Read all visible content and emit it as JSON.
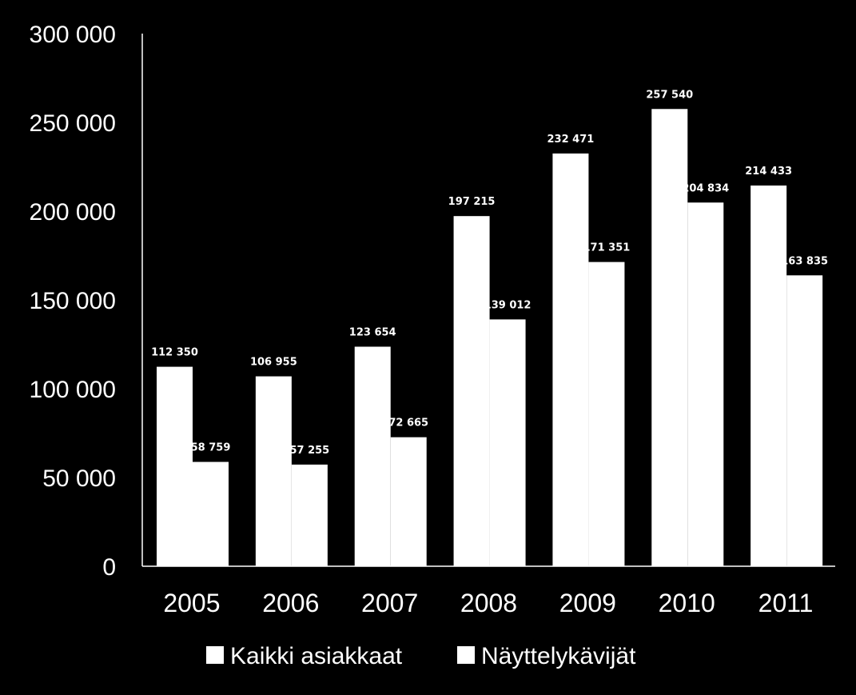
{
  "chart_data": {
    "type": "bar",
    "categories": [
      "2005",
      "2006",
      "2007",
      "2008",
      "2009",
      "2010",
      "2011"
    ],
    "series": [
      {
        "name": "Kaikki asiakkaat",
        "values": [
          112350,
          106955,
          123654,
          197215,
          232471,
          257540,
          214433
        ],
        "labels": [
          "112 350",
          "106 955",
          "123 654",
          "197 215",
          "232 471",
          "257 540",
          "214 433"
        ],
        "color": "#ffffff"
      },
      {
        "name": "Näyttelykävijät",
        "values": [
          58759,
          57255,
          72665,
          139012,
          171351,
          204834,
          163835
        ],
        "labels": [
          "58 759",
          "57 255",
          "72 665",
          "139 012",
          "171 351",
          "204 834",
          "163 835"
        ],
        "color": "#ffffff"
      }
    ],
    "ylim": [
      0,
      300000
    ],
    "yticks": [
      0,
      50000,
      100000,
      150000,
      200000,
      250000,
      300000
    ],
    "ytick_labels": [
      "0",
      "50 000",
      "100 000",
      "150 000",
      "200 000",
      "250 000",
      "300 000"
    ],
    "legend_position": "bottom",
    "grid": false,
    "background": "#000000",
    "axis_color": "#ffffff"
  }
}
